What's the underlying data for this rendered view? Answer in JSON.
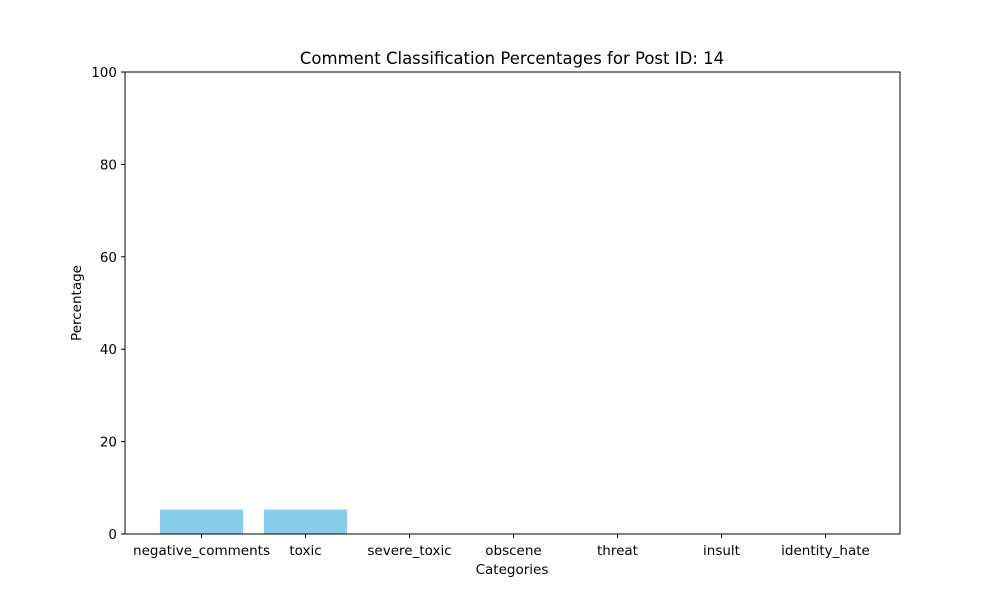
{
  "chart_data": {
    "type": "bar",
    "title": "Comment Classification Percentages for Post ID: 14",
    "xlabel": "Categories",
    "ylabel": "Percentage",
    "categories": [
      "negative_comments",
      "toxic",
      "severe_toxic",
      "obscene",
      "threat",
      "insult",
      "identity_hate"
    ],
    "values": [
      5.3,
      5.3,
      0,
      0,
      0,
      0,
      0
    ],
    "ylim": [
      0,
      100
    ],
    "yticks": [
      "0",
      "20",
      "40",
      "60",
      "80",
      "100"
    ],
    "bar_color": "#87CEEB",
    "grid": false,
    "legend": "none"
  }
}
